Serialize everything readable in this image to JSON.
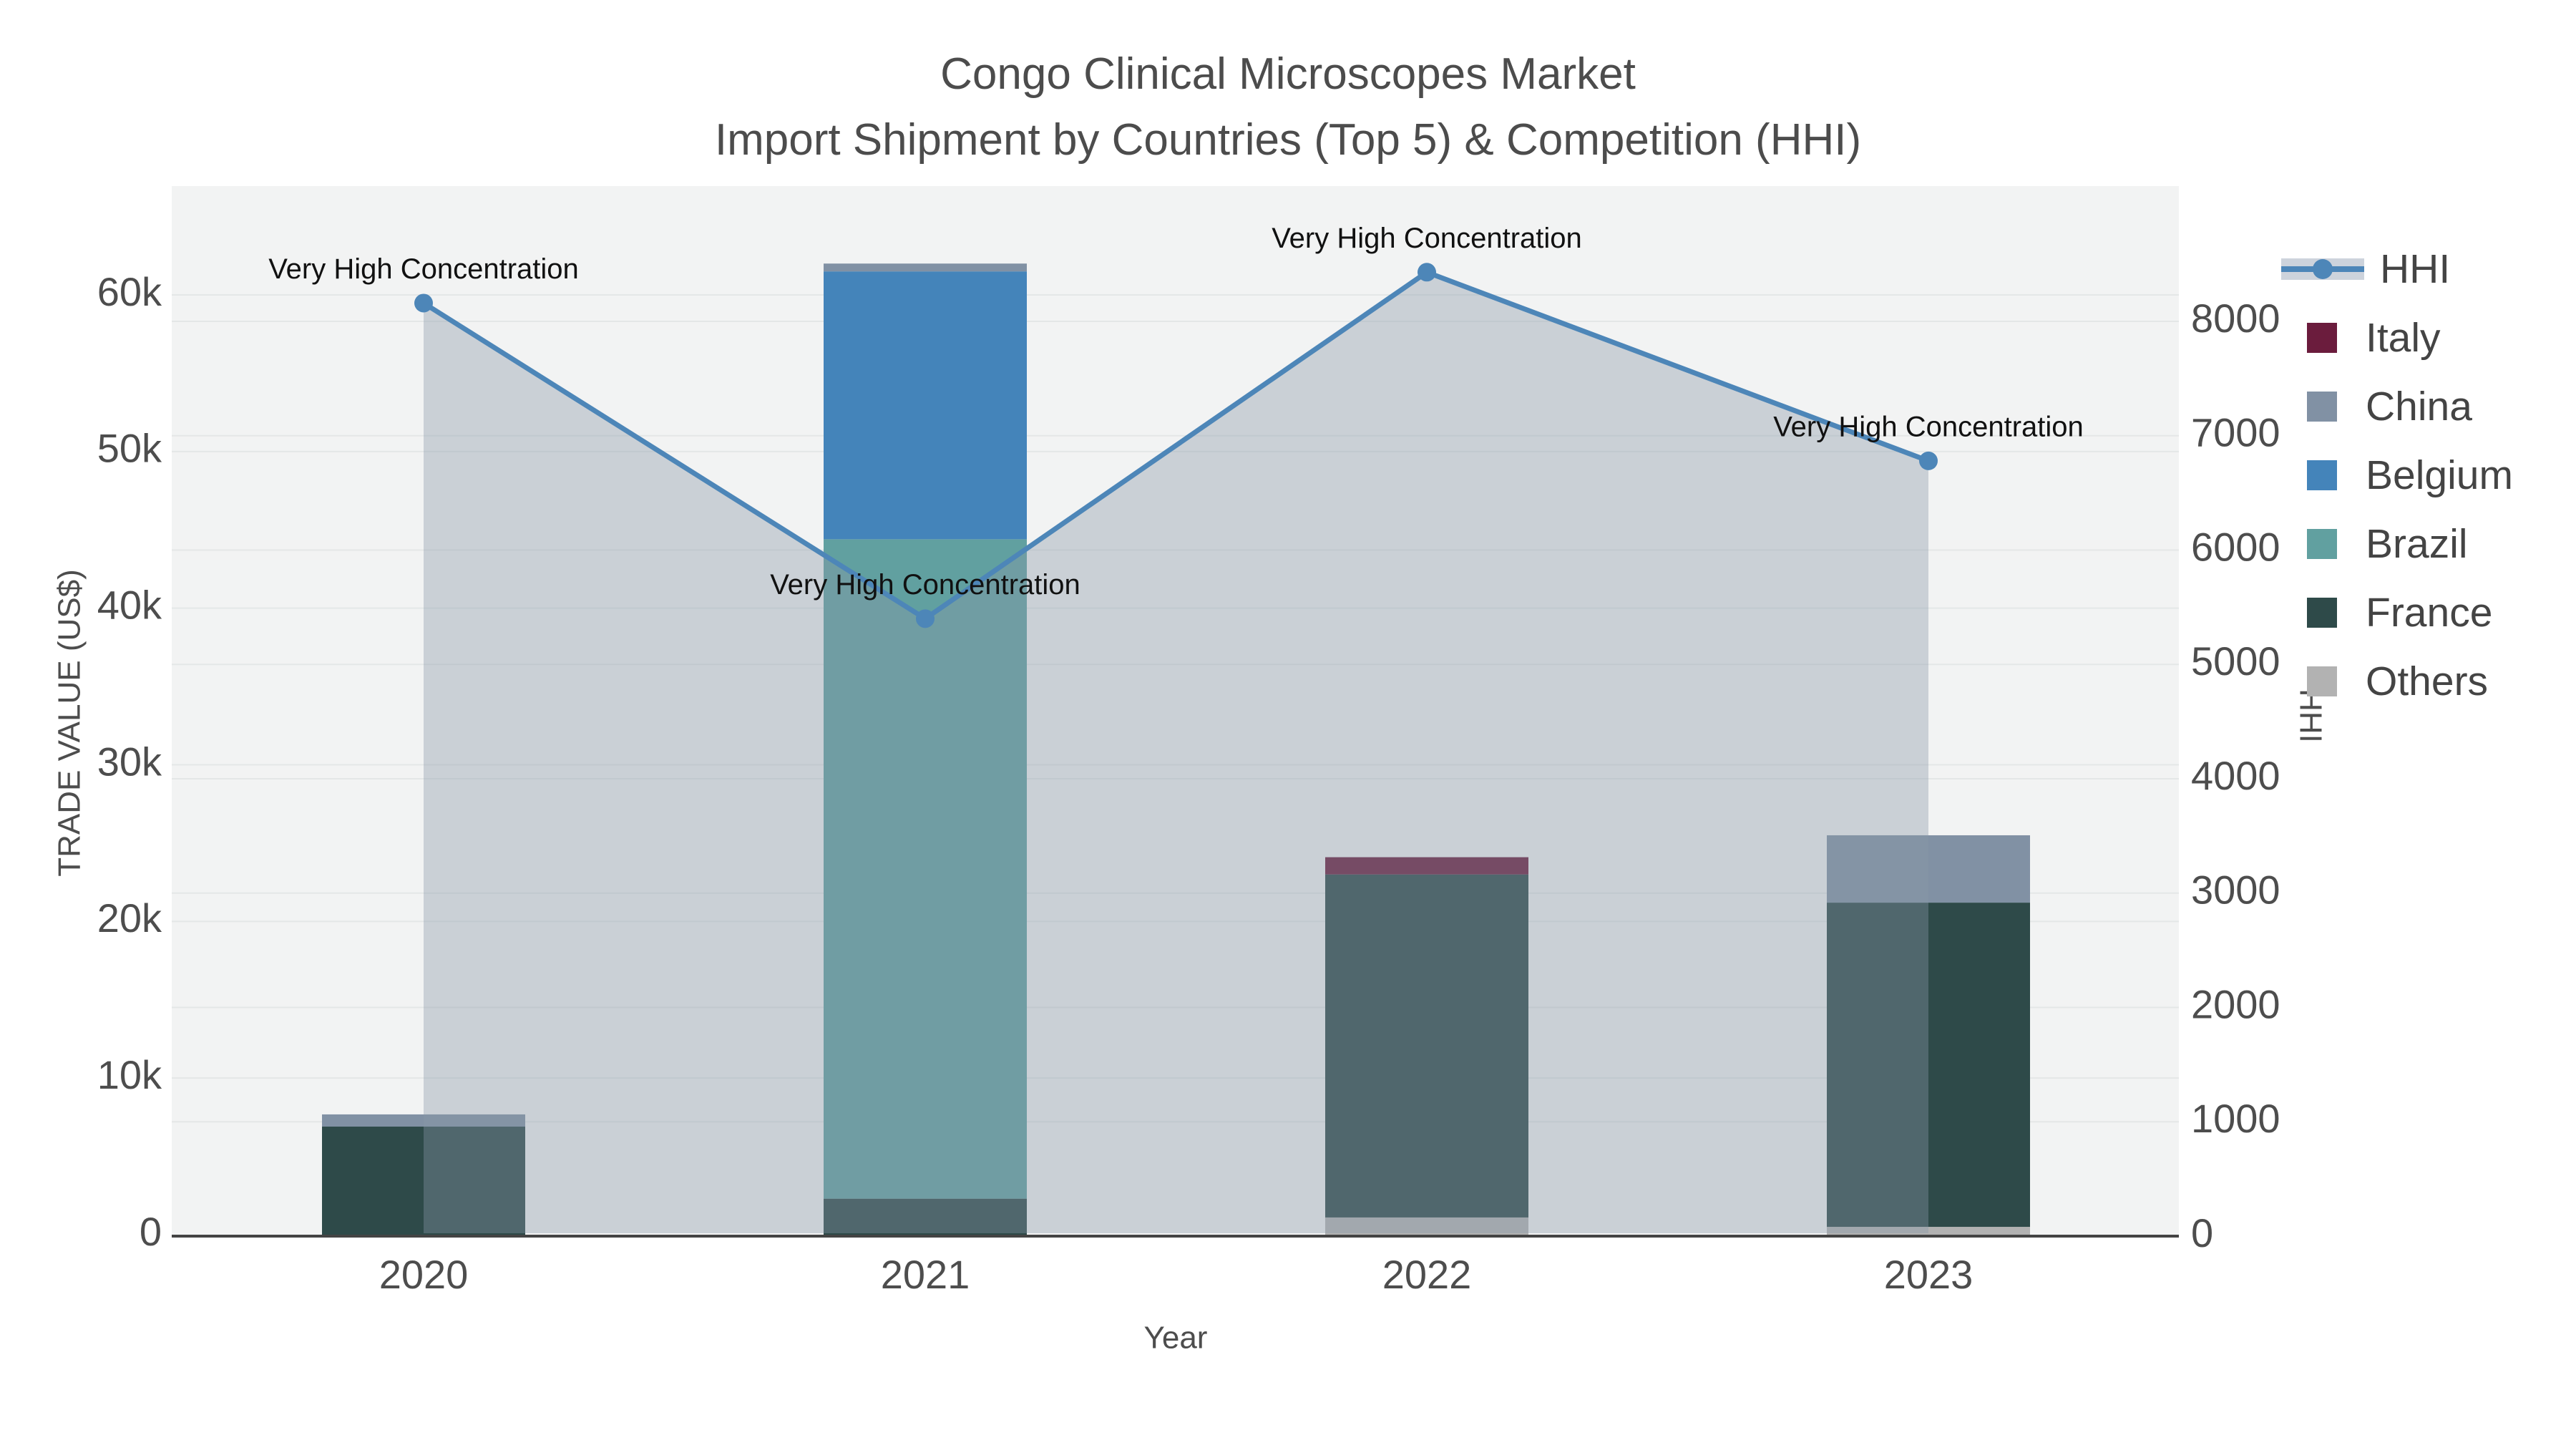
{
  "title": {
    "line1": "Congo Clinical Microscopes Market",
    "line2": "Import Shipment by Countries (Top 5) & Competition (HHI)"
  },
  "axes": {
    "x_title": "Year",
    "y_left_title": "TRADE VALUE (US$)",
    "y_right_title": "HHI",
    "x_tick_labels": [
      "2020",
      "2021",
      "2022",
      "2023"
    ],
    "y_left_tick_labels": [
      "0",
      "10k",
      "20k",
      "30k",
      "40k",
      "50k",
      "60k"
    ],
    "y_left_tick_values": [
      0,
      10000,
      20000,
      30000,
      40000,
      50000,
      60000
    ],
    "y_right_tick_labels": [
      "0",
      "1000",
      "2000",
      "3000",
      "4000",
      "5000",
      "6000",
      "7000",
      "8000"
    ],
    "y_right_tick_values": [
      0,
      1000,
      2000,
      3000,
      4000,
      5000,
      6000,
      7000,
      8000
    ]
  },
  "chart_data": {
    "type": "bar+line",
    "categories": [
      "2020",
      "2021",
      "2022",
      "2023"
    ],
    "bar_stack_order_note": "bottom to top: Others, France, Brazil, Belgium, China, Italy",
    "series": [
      {
        "name": "Others",
        "type": "bar",
        "color": "#b2b2b2",
        "values": [
          0,
          0,
          1100,
          500
        ]
      },
      {
        "name": "France",
        "type": "bar",
        "color": "#2e4a49",
        "values": [
          6900,
          2300,
          21900,
          20700
        ]
      },
      {
        "name": "Brazil",
        "type": "bar",
        "color": "#61a0a0",
        "values": [
          0,
          42100,
          0,
          0
        ]
      },
      {
        "name": "Belgium",
        "type": "bar",
        "color": "#4484ba",
        "values": [
          0,
          17100,
          0,
          0
        ]
      },
      {
        "name": "China",
        "type": "bar",
        "color": "#8191a4",
        "values": [
          780,
          500,
          0,
          4300
        ]
      },
      {
        "name": "Italy",
        "type": "bar",
        "color": "#6b1c3d",
        "values": [
          0,
          0,
          1100,
          0
        ]
      }
    ],
    "line_series": {
      "name": "HHI",
      "type": "line",
      "color": "#4d86b8",
      "area_fill": "rgba(137,153,167,0.38)",
      "values": [
        8160,
        5400,
        8430,
        6780
      ]
    },
    "annotations": [
      {
        "text": "Very High Concentration",
        "category": "2020"
      },
      {
        "text": "Very High Concentration",
        "category": "2021"
      },
      {
        "text": "Very High Concentration",
        "category": "2022"
      },
      {
        "text": "Very High Concentration",
        "category": "2023"
      }
    ],
    "ylabel_left": "TRADE VALUE (US$)",
    "ylabel_right": "HHI",
    "xlabel": "Year",
    "ylim_left": [
      0,
      60000
    ],
    "ylim_right": [
      0,
      8000
    ],
    "grid": true,
    "legend_position": "right"
  },
  "legend": {
    "items": [
      {
        "label": "HHI",
        "kind": "line",
        "color": "#4d86b8"
      },
      {
        "label": "Italy",
        "kind": "square",
        "color": "#6b1c3d"
      },
      {
        "label": "China",
        "kind": "square",
        "color": "#8191a4"
      },
      {
        "label": "Belgium",
        "kind": "square",
        "color": "#4484ba"
      },
      {
        "label": "Brazil",
        "kind": "square",
        "color": "#61a0a0"
      },
      {
        "label": "France",
        "kind": "square",
        "color": "#2e4a49"
      },
      {
        "label": "Others",
        "kind": "square",
        "color": "#b2b2b2"
      }
    ]
  },
  "colors": {
    "plot_background": "#f2f3f3",
    "gridline": "#e4e7e7",
    "axis_line": "#444444",
    "tick_text": "#4d4d4d",
    "title_text": "#4c4c4c",
    "annotation_text": "#111111"
  }
}
